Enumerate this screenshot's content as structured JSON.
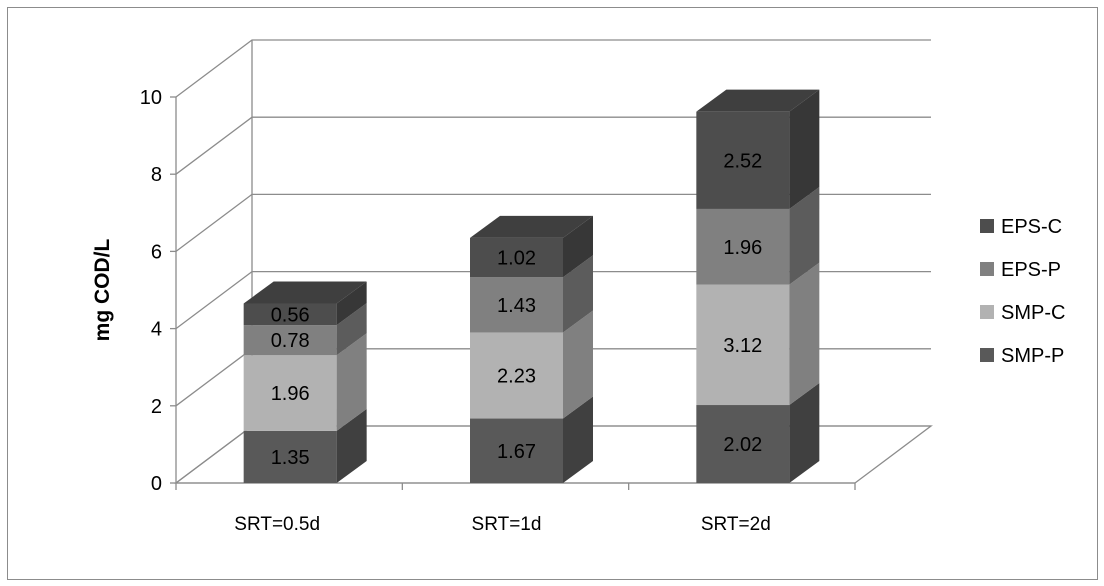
{
  "chart_data": {
    "type": "bar",
    "stacked": true,
    "three_d": true,
    "categories": [
      "SRT=0.5d",
      "SRT=1d",
      "SRT=2d"
    ],
    "series": [
      {
        "name": "SMP-P",
        "values": [
          1.35,
          1.67,
          2.02
        ],
        "color": "#595959"
      },
      {
        "name": "SMP-C",
        "values": [
          1.96,
          2.23,
          3.12
        ],
        "color": "#b2b2b2"
      },
      {
        "name": "EPS-P",
        "values": [
          0.78,
          1.43,
          1.96
        ],
        "color": "#808080"
      },
      {
        "name": "EPS-C",
        "values": [
          0.56,
          1.02,
          2.52
        ],
        "color": "#4d4d4d"
      }
    ],
    "data_labels": [
      [
        "1.35",
        "1.67",
        "2.02"
      ],
      [
        "1.96",
        "2.23",
        "3.12"
      ],
      [
        "0.78",
        "1.43",
        "1.96"
      ],
      [
        "0.56",
        "1.02",
        "2.52"
      ]
    ],
    "yticks": [
      "0",
      "2",
      "4",
      "6",
      "8",
      "10"
    ],
    "ylim": [
      0,
      10
    ],
    "ylabel": "mg COD/L",
    "xlabel": "",
    "title": "",
    "grid": true,
    "legend_position": "right",
    "legend_order": [
      "EPS-C",
      "EPS-P",
      "SMP-C",
      "SMP-P"
    ]
  }
}
